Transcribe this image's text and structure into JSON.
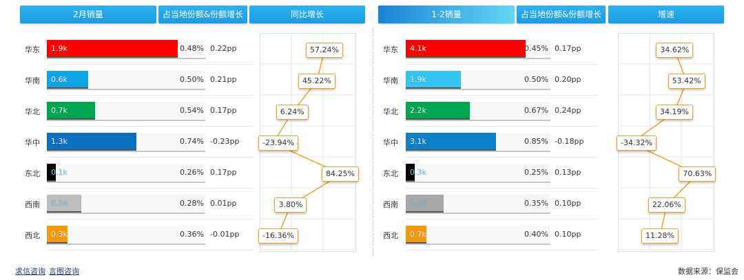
{
  "headers": {
    "left": {
      "sales": "2月销量",
      "share": "占当地份额&份额增长",
      "growth": "同比增长"
    },
    "right": {
      "sales": "1-2销量",
      "share": "占当地份额&份额增长",
      "growth": "增速"
    }
  },
  "regions": [
    "华东",
    "华南",
    "华北",
    "华中",
    "东北",
    "西南",
    "西北"
  ],
  "colors": {
    "华东": "#ff0000",
    "华南": "#0ea5e8",
    "华北": "#00a651",
    "华中": "#0d6fc0",
    "东北": "#000000",
    "西南": "#bdbdbd",
    "西北": "#f59a10"
  },
  "chart_data": [
    {
      "type": "bar",
      "title": "2月销量",
      "categories": [
        "华东",
        "华南",
        "华北",
        "华中",
        "东北",
        "西南",
        "西北"
      ],
      "values": [
        1.9,
        0.6,
        0.7,
        1.3,
        0.1,
        0.5,
        0.3
      ],
      "value_labels": [
        "1.9k",
        "0.6k",
        "0.7k",
        "1.3k",
        "0.1k",
        "0.5k",
        "0.3k"
      ],
      "value_max": 2.0,
      "share": [
        "0.48%",
        "0.50%",
        "0.54%",
        "0.74%",
        "0.26%",
        "0.28%",
        "0.36%"
      ],
      "share_change": [
        "0.22pp",
        "0.21pp",
        "0.17pp",
        "-0.23pp",
        "0.17pp",
        "0.01pp",
        "-0.01pp"
      ]
    },
    {
      "type": "line",
      "title": "同比增长",
      "categories": [
        "华东",
        "华南",
        "华北",
        "华中",
        "东北",
        "西南",
        "西北"
      ],
      "values": [
        57.24,
        45.22,
        6.24,
        -23.94,
        84.25,
        3.8,
        -16.36
      ],
      "labels": [
        "57.24%",
        "45.22%",
        "6.24%",
        "-23.94%",
        "84.25%",
        "3.80%",
        "-16.36%"
      ],
      "xlim": [
        -30,
        90
      ]
    },
    {
      "type": "bar",
      "title": "1-2销量",
      "categories": [
        "华东",
        "华南",
        "华北",
        "华中",
        "东北",
        "西南",
        "西北"
      ],
      "values": [
        4.1,
        1.9,
        2.2,
        3.1,
        0.3,
        1.3,
        0.7
      ],
      "value_labels": [
        "4.1k",
        "1.9k",
        "2.2k",
        "3.1k",
        "0.3k",
        "1.3k",
        "0.7k"
      ],
      "value_max": 4.3,
      "share": [
        "0.45%",
        "0.50%",
        "0.67%",
        "0.85%",
        "0.25%",
        "0.35%",
        "0.40%"
      ],
      "share_change": [
        "0.17pp",
        "0.20pp",
        "0.24pp",
        "-0.18pp",
        "0.13pp",
        "0.10pp",
        "0.10pp"
      ],
      "bar_colors": [
        "#ff0000",
        "#33c6f5",
        "#00a651",
        "#0d80c8",
        "#000000",
        "#a8a8a8",
        "#f59a10"
      ]
    },
    {
      "type": "line",
      "title": "增速",
      "categories": [
        "华东",
        "华南",
        "华北",
        "华中",
        "东北",
        "西南",
        "西北"
      ],
      "values": [
        34.62,
        53.42,
        34.19,
        -34.32,
        70.63,
        22.06,
        11.28
      ],
      "labels": [
        "34.62%",
        "53.42%",
        "34.19%",
        "-34.32%",
        "70.63%",
        "22.06%",
        "11.28%"
      ],
      "xlim": [
        -40,
        80
      ]
    }
  ],
  "footer": {
    "link1": "求信咨询",
    "link2": "言图咨询",
    "source": "数据来源：保监会"
  }
}
